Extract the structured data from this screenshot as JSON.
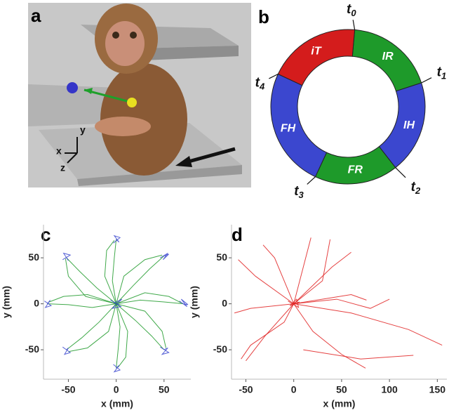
{
  "panels": [
    "a",
    "b",
    "c",
    "d"
  ],
  "scene": {
    "axes": [
      "y",
      "x",
      "z"
    ]
  },
  "diagram": {
    "times": [
      {
        "t": "t",
        "sub": "0"
      },
      {
        "t": "t",
        "sub": "1"
      },
      {
        "t": "t",
        "sub": "2"
      },
      {
        "t": "t",
        "sub": "3"
      },
      {
        "t": "t",
        "sub": "4"
      }
    ],
    "segments": [
      {
        "label": "IR",
        "color": "#1e9a2a"
      },
      {
        "label": "IH",
        "color": "#3b47cf"
      },
      {
        "label": "FR",
        "color": "#1e9a2a"
      },
      {
        "label": "FH",
        "color": "#3b47cf"
      },
      {
        "label": "iT",
        "color": "#d41c1c"
      }
    ]
  },
  "chart_data": [
    {
      "type": "line",
      "xlabel": "x (mm)",
      "ylabel": "y (mm)",
      "xlim": [
        -76,
        78
      ],
      "ylim": [
        -82,
        86
      ],
      "xticks": [
        -50,
        0,
        50
      ],
      "yticks": [
        -50,
        0,
        50
      ],
      "series": [
        {
          "color": "#1e9a2a",
          "x": [
            0,
            25,
            50,
            70
          ],
          "y": [
            0,
            4,
            2,
            0
          ]
        },
        {
          "color": "#1e9a2a",
          "x": [
            0,
            18,
            35,
            50
          ],
          "y": [
            0,
            20,
            38,
            52
          ]
        },
        {
          "color": "#1e9a2a",
          "x": [
            0,
            -4,
            -2,
            0
          ],
          "y": [
            0,
            25,
            50,
            70
          ]
        },
        {
          "color": "#1e9a2a",
          "x": [
            0,
            -20,
            -38,
            -52
          ],
          "y": [
            0,
            17,
            35,
            50
          ]
        },
        {
          "color": "#1e9a2a",
          "x": [
            0,
            -25,
            -50,
            -72
          ],
          "y": [
            0,
            -4,
            -1,
            0
          ]
        },
        {
          "color": "#1e9a2a",
          "x": [
            0,
            -18,
            -36,
            -52
          ],
          "y": [
            0,
            -20,
            -37,
            -50
          ]
        },
        {
          "color": "#1e9a2a",
          "x": [
            0,
            4,
            2,
            0
          ],
          "y": [
            0,
            -25,
            -50,
            -70
          ]
        },
        {
          "color": "#1e9a2a",
          "x": [
            0,
            20,
            37,
            50
          ],
          "y": [
            0,
            -18,
            -35,
            -50
          ]
        },
        {
          "color": "#1e9a2a",
          "x": [
            0,
            30,
            55,
            68
          ],
          "y": [
            0,
            12,
            8,
            1
          ]
        },
        {
          "color": "#1e9a2a",
          "x": [
            0,
            8,
            30,
            48
          ],
          "y": [
            0,
            30,
            48,
            53
          ]
        },
        {
          "color": "#1e9a2a",
          "x": [
            0,
            -12,
            -10,
            -2
          ],
          "y": [
            0,
            30,
            58,
            69
          ]
        },
        {
          "color": "#1e9a2a",
          "x": [
            0,
            -30,
            -55,
            -70
          ],
          "y": [
            0,
            10,
            8,
            2
          ]
        },
        {
          "color": "#1e9a2a",
          "x": [
            0,
            -8,
            -30,
            -50
          ],
          "y": [
            0,
            -30,
            -48,
            -52
          ]
        },
        {
          "color": "#1e9a2a",
          "x": [
            0,
            12,
            10,
            2
          ],
          "y": [
            0,
            -30,
            -58,
            -69
          ]
        },
        {
          "color": "#1e9a2a",
          "x": [
            0,
            30,
            48,
            52
          ],
          "y": [
            0,
            -8,
            -30,
            -48
          ]
        },
        {
          "color": "#1e9a2a",
          "x": [
            0,
            -32,
            -50,
            -53
          ],
          "y": [
            0,
            8,
            30,
            49
          ]
        },
        {
          "color": "#3b47cf",
          "x": [
            -6,
            5,
            -4,
            6,
            -2,
            3
          ],
          "y": [
            4,
            -3,
            -5,
            5,
            1,
            -1
          ]
        },
        {
          "color": "#3b47cf",
          "x": [
            66,
            74,
            68,
            75,
            70
          ],
          "y": [
            3,
            -3,
            5,
            -1,
            0
          ]
        },
        {
          "color": "#3b47cf",
          "x": [
            46,
            54,
            49,
            55,
            50
          ],
          "y": [
            50,
            55,
            48,
            54,
            52
          ]
        },
        {
          "color": "#3b47cf",
          "x": [
            -3,
            4,
            -2,
            3,
            0
          ],
          "y": [
            66,
            72,
            74,
            67,
            70
          ]
        },
        {
          "color": "#3b47cf",
          "x": [
            -56,
            -48,
            -55,
            -50,
            -52
          ],
          "y": [
            48,
            53,
            55,
            47,
            50
          ]
        },
        {
          "color": "#3b47cf",
          "x": [
            -75,
            -68,
            -74,
            -69,
            -72
          ],
          "y": [
            3,
            -2,
            -4,
            4,
            0
          ]
        },
        {
          "color": "#3b47cf",
          "x": [
            -56,
            -48,
            -54,
            -50,
            -52
          ],
          "y": [
            -47,
            -53,
            -55,
            -48,
            -50
          ]
        },
        {
          "color": "#3b47cf",
          "x": [
            -3,
            4,
            -2,
            3,
            0
          ],
          "y": [
            -66,
            -72,
            -74,
            -67,
            -70
          ]
        },
        {
          "color": "#3b47cf",
          "x": [
            46,
            55,
            48,
            54,
            50
          ],
          "y": [
            -47,
            -53,
            -55,
            -48,
            -50
          ]
        }
      ]
    },
    {
      "type": "line",
      "xlabel": "x (mm)",
      "ylabel": "y (mm)",
      "xlim": [
        -65,
        160
      ],
      "ylim": [
        -82,
        86
      ],
      "xticks": [
        -50,
        0,
        50,
        100,
        150
      ],
      "yticks": [
        -50,
        0,
        50
      ],
      "series": [
        {
          "color": "#e02020",
          "x": [
            0,
            -40,
            -58
          ],
          "y": [
            0,
            30,
            48
          ]
        },
        {
          "color": "#e02020",
          "x": [
            0,
            60,
            120,
            155
          ],
          "y": [
            0,
            -10,
            -28,
            -45
          ]
        },
        {
          "color": "#e02020",
          "x": [
            0,
            20,
            50,
            75
          ],
          "y": [
            0,
            -30,
            -55,
            -70
          ]
        },
        {
          "color": "#e02020",
          "x": [
            0,
            -30,
            -50
          ],
          "y": [
            0,
            -35,
            -62
          ]
        },
        {
          "color": "#e02020",
          "x": [
            0,
            10,
            18
          ],
          "y": [
            0,
            40,
            72
          ]
        },
        {
          "color": "#e02020",
          "x": [
            0,
            60,
            76
          ],
          "y": [
            0,
            10,
            4
          ]
        },
        {
          "color": "#e02020",
          "x": [
            -6,
            5,
            3,
            -4,
            6,
            0
          ],
          "y": [
            3,
            -4,
            5,
            -2,
            2,
            0
          ]
        },
        {
          "color": "#e02020",
          "x": [
            0,
            40,
            60
          ],
          "y": [
            0,
            40,
            56
          ]
        },
        {
          "color": "#e02020",
          "x": [
            0,
            -45,
            -62
          ],
          "y": [
            0,
            -5,
            -10
          ]
        },
        {
          "color": "#e02020",
          "x": [
            0,
            -20,
            -32
          ],
          "y": [
            0,
            50,
            64
          ]
        },
        {
          "color": "#e02020",
          "x": [
            10,
            70,
            125
          ],
          "y": [
            -50,
            -60,
            -56
          ]
        },
        {
          "color": "#e02020",
          "x": [
            0,
            -10,
            -45,
            -55
          ],
          "y": [
            0,
            -20,
            -45,
            -60
          ]
        },
        {
          "color": "#e02020",
          "x": [
            0,
            30,
            38
          ],
          "y": [
            0,
            25,
            70
          ]
        },
        {
          "color": "#e02020",
          "x": [
            0,
            45,
            80,
            100
          ],
          "y": [
            0,
            5,
            -5,
            5
          ]
        }
      ]
    }
  ]
}
